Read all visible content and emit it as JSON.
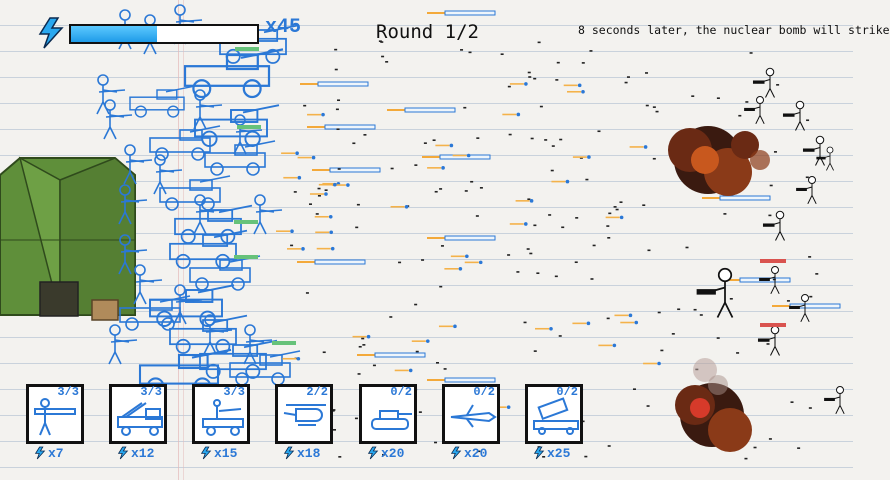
{
  "hud": {
    "energy_level": 0.46,
    "energy_count": "x45",
    "round": "Round 1/2",
    "warning": "8 seconds later, the nuclear bomb will strike"
  },
  "colors": {
    "player": "#2b78d6",
    "enemy": "#111111",
    "tent": "#5f8f3a",
    "energy": "#29a8f0"
  },
  "units": [
    {
      "name": "bazooka-soldier",
      "count": "3/3",
      "cost": "x7",
      "icon": "bazooka-soldier-icon"
    },
    {
      "name": "rocket-truck",
      "count": "3/3",
      "cost": "x12",
      "icon": "rocket-truck-icon"
    },
    {
      "name": "gun-jeep",
      "count": "3/3",
      "cost": "x15",
      "icon": "gun-jeep-icon"
    },
    {
      "name": "helicopter",
      "count": "2/2",
      "cost": "x18",
      "icon": "helicopter-icon"
    },
    {
      "name": "tank",
      "count": "0/2",
      "cost": "x20",
      "icon": "tank-icon"
    },
    {
      "name": "jet",
      "count": "0/2",
      "cost": "x20",
      "icon": "jet-icon"
    },
    {
      "name": "missile-launcher",
      "count": "0/2",
      "cost": "x25",
      "icon": "missile-launcher-icon"
    }
  ]
}
